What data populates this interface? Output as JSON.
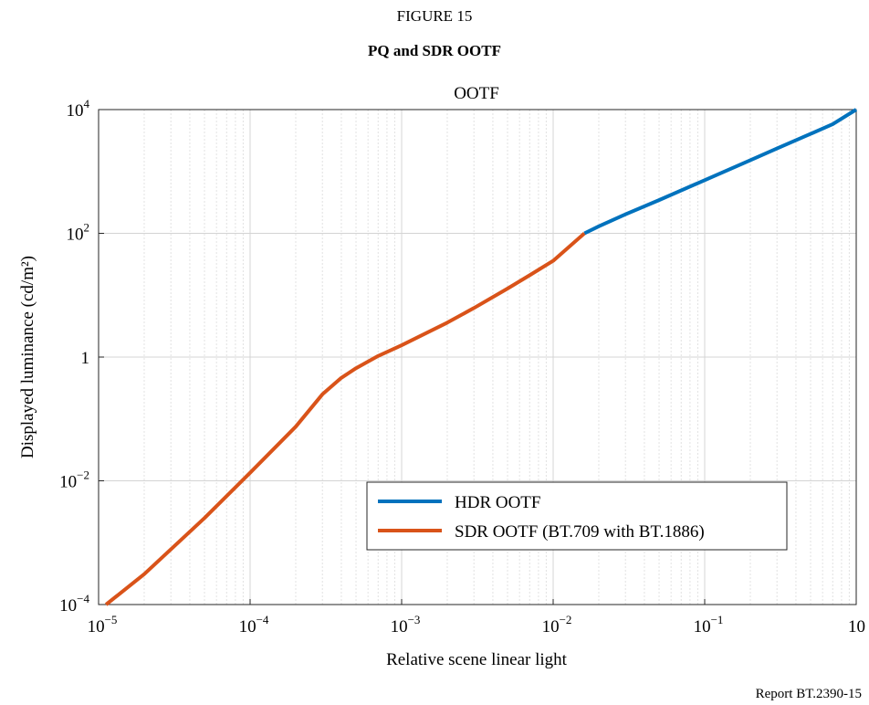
{
  "figure": {
    "label": "FIGURE 15",
    "title": "PQ and SDR OOTF",
    "credit": "Report BT.2390-15"
  },
  "chart_data": {
    "type": "line",
    "title": "OOTF",
    "xlabel": "Relative scene linear light",
    "ylabel": "Displayed luminance (cd/m²)",
    "x_scale": "log",
    "y_scale": "log",
    "xlim": [
      1e-05,
      1
    ],
    "ylim": [
      0.0001,
      10000
    ],
    "grid": true,
    "legend_position": "lower-right",
    "x_ticks": [
      {
        "base": "10",
        "exp": "−5"
      },
      {
        "base": "10",
        "exp": "−4"
      },
      {
        "base": "10",
        "exp": "−3"
      },
      {
        "base": "10",
        "exp": "−2"
      },
      {
        "base": "10",
        "exp": "−1"
      },
      {
        "base": "10",
        "exp": ""
      }
    ],
    "y_ticks": [
      {
        "base": "10",
        "exp": "−4"
      },
      {
        "base": "10",
        "exp": "−2"
      },
      {
        "base": "1",
        "exp": ""
      },
      {
        "base": "10",
        "exp": "2"
      },
      {
        "base": "10",
        "exp": "4"
      }
    ],
    "series": [
      {
        "name": "HDR OOTF",
        "color": "#0072bd",
        "x": [
          0.0161,
          0.02,
          0.03,
          0.05,
          0.1,
          0.2,
          0.3,
          0.5,
          0.7,
          1.0
        ],
        "y": [
          100,
          130,
          203,
          345,
          724,
          1520,
          2350,
          4050,
          5820,
          10000
        ]
      },
      {
        "name": "SDR OOTF (BT.709 with BT.1886)",
        "color": "#d95319",
        "x": [
          1.12e-05,
          2e-05,
          5e-05,
          0.0001,
          0.0002,
          0.0003,
          0.0004,
          0.0005,
          0.0007,
          0.001,
          0.002,
          0.003,
          0.005,
          0.007,
          0.01,
          0.0161
        ],
        "y": [
          0.0001,
          0.00031,
          0.0025,
          0.0135,
          0.075,
          0.25,
          0.46,
          0.66,
          1.04,
          1.55,
          3.6,
          6.2,
          12.8,
          21.0,
          36.0,
          100
        ]
      }
    ]
  }
}
